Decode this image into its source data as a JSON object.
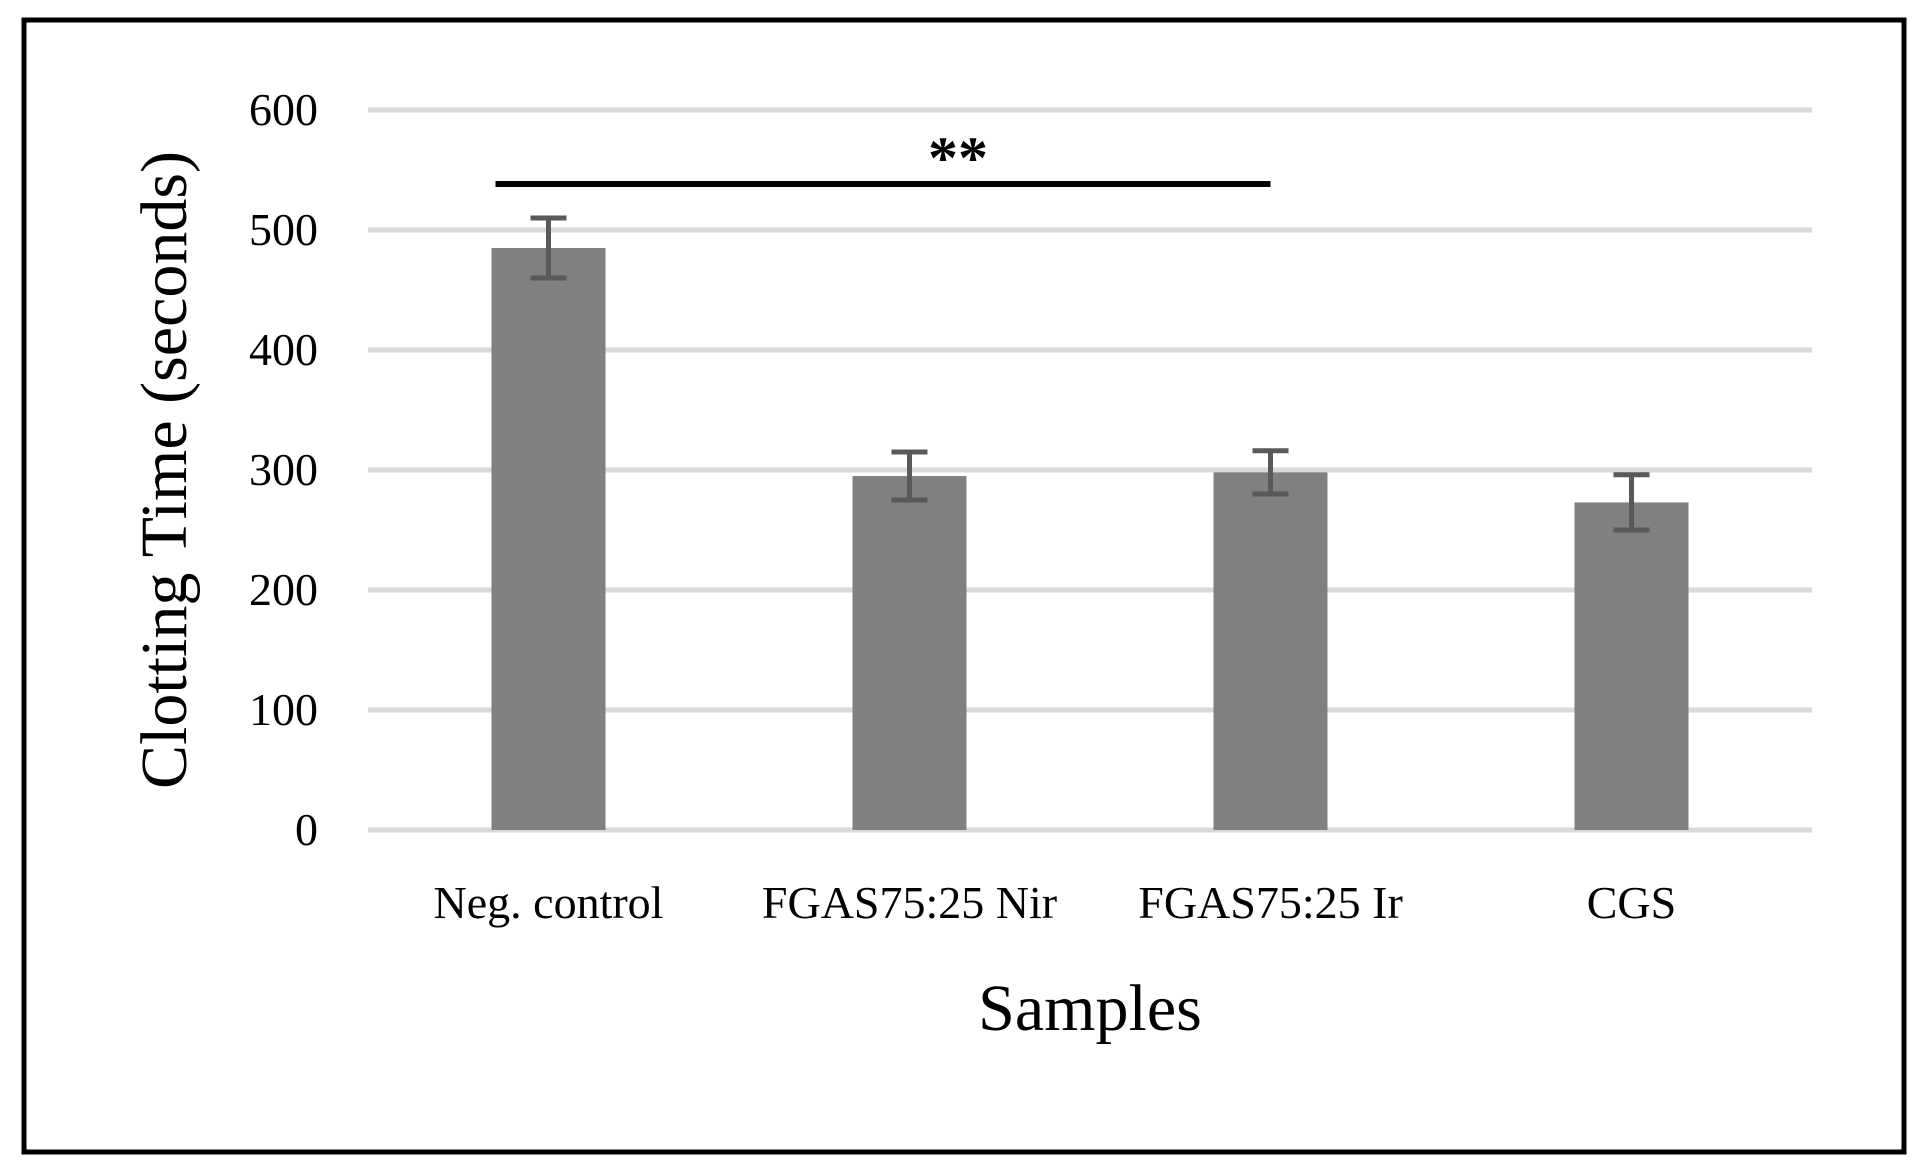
{
  "chart_data": {
    "type": "bar",
    "title": "",
    "xlabel": "Samples",
    "ylabel": "Clotting Time (seconds)",
    "ylim": [
      0,
      600
    ],
    "yticks": [
      0,
      100,
      200,
      300,
      400,
      500,
      600
    ],
    "grid": true,
    "legend": "none",
    "categories": [
      "Neg. control",
      "FGAS75:25 Nir",
      "FGAS75:25 Ir",
      "CGS"
    ],
    "series": [
      {
        "values": [
          485,
          295,
          298,
          273
        ],
        "errors": [
          25,
          20,
          18,
          23
        ],
        "color": "#808080"
      }
    ],
    "annotations": [
      {
        "type": "significance",
        "label": "**",
        "from_category": "Neg. control",
        "to_category": "FGAS75:25 Ir"
      }
    ]
  },
  "colors": {
    "bar": "#808080",
    "error_bar": "#595959",
    "grid": "#d9d9d9",
    "frame": "#000000",
    "text": "#000000"
  }
}
